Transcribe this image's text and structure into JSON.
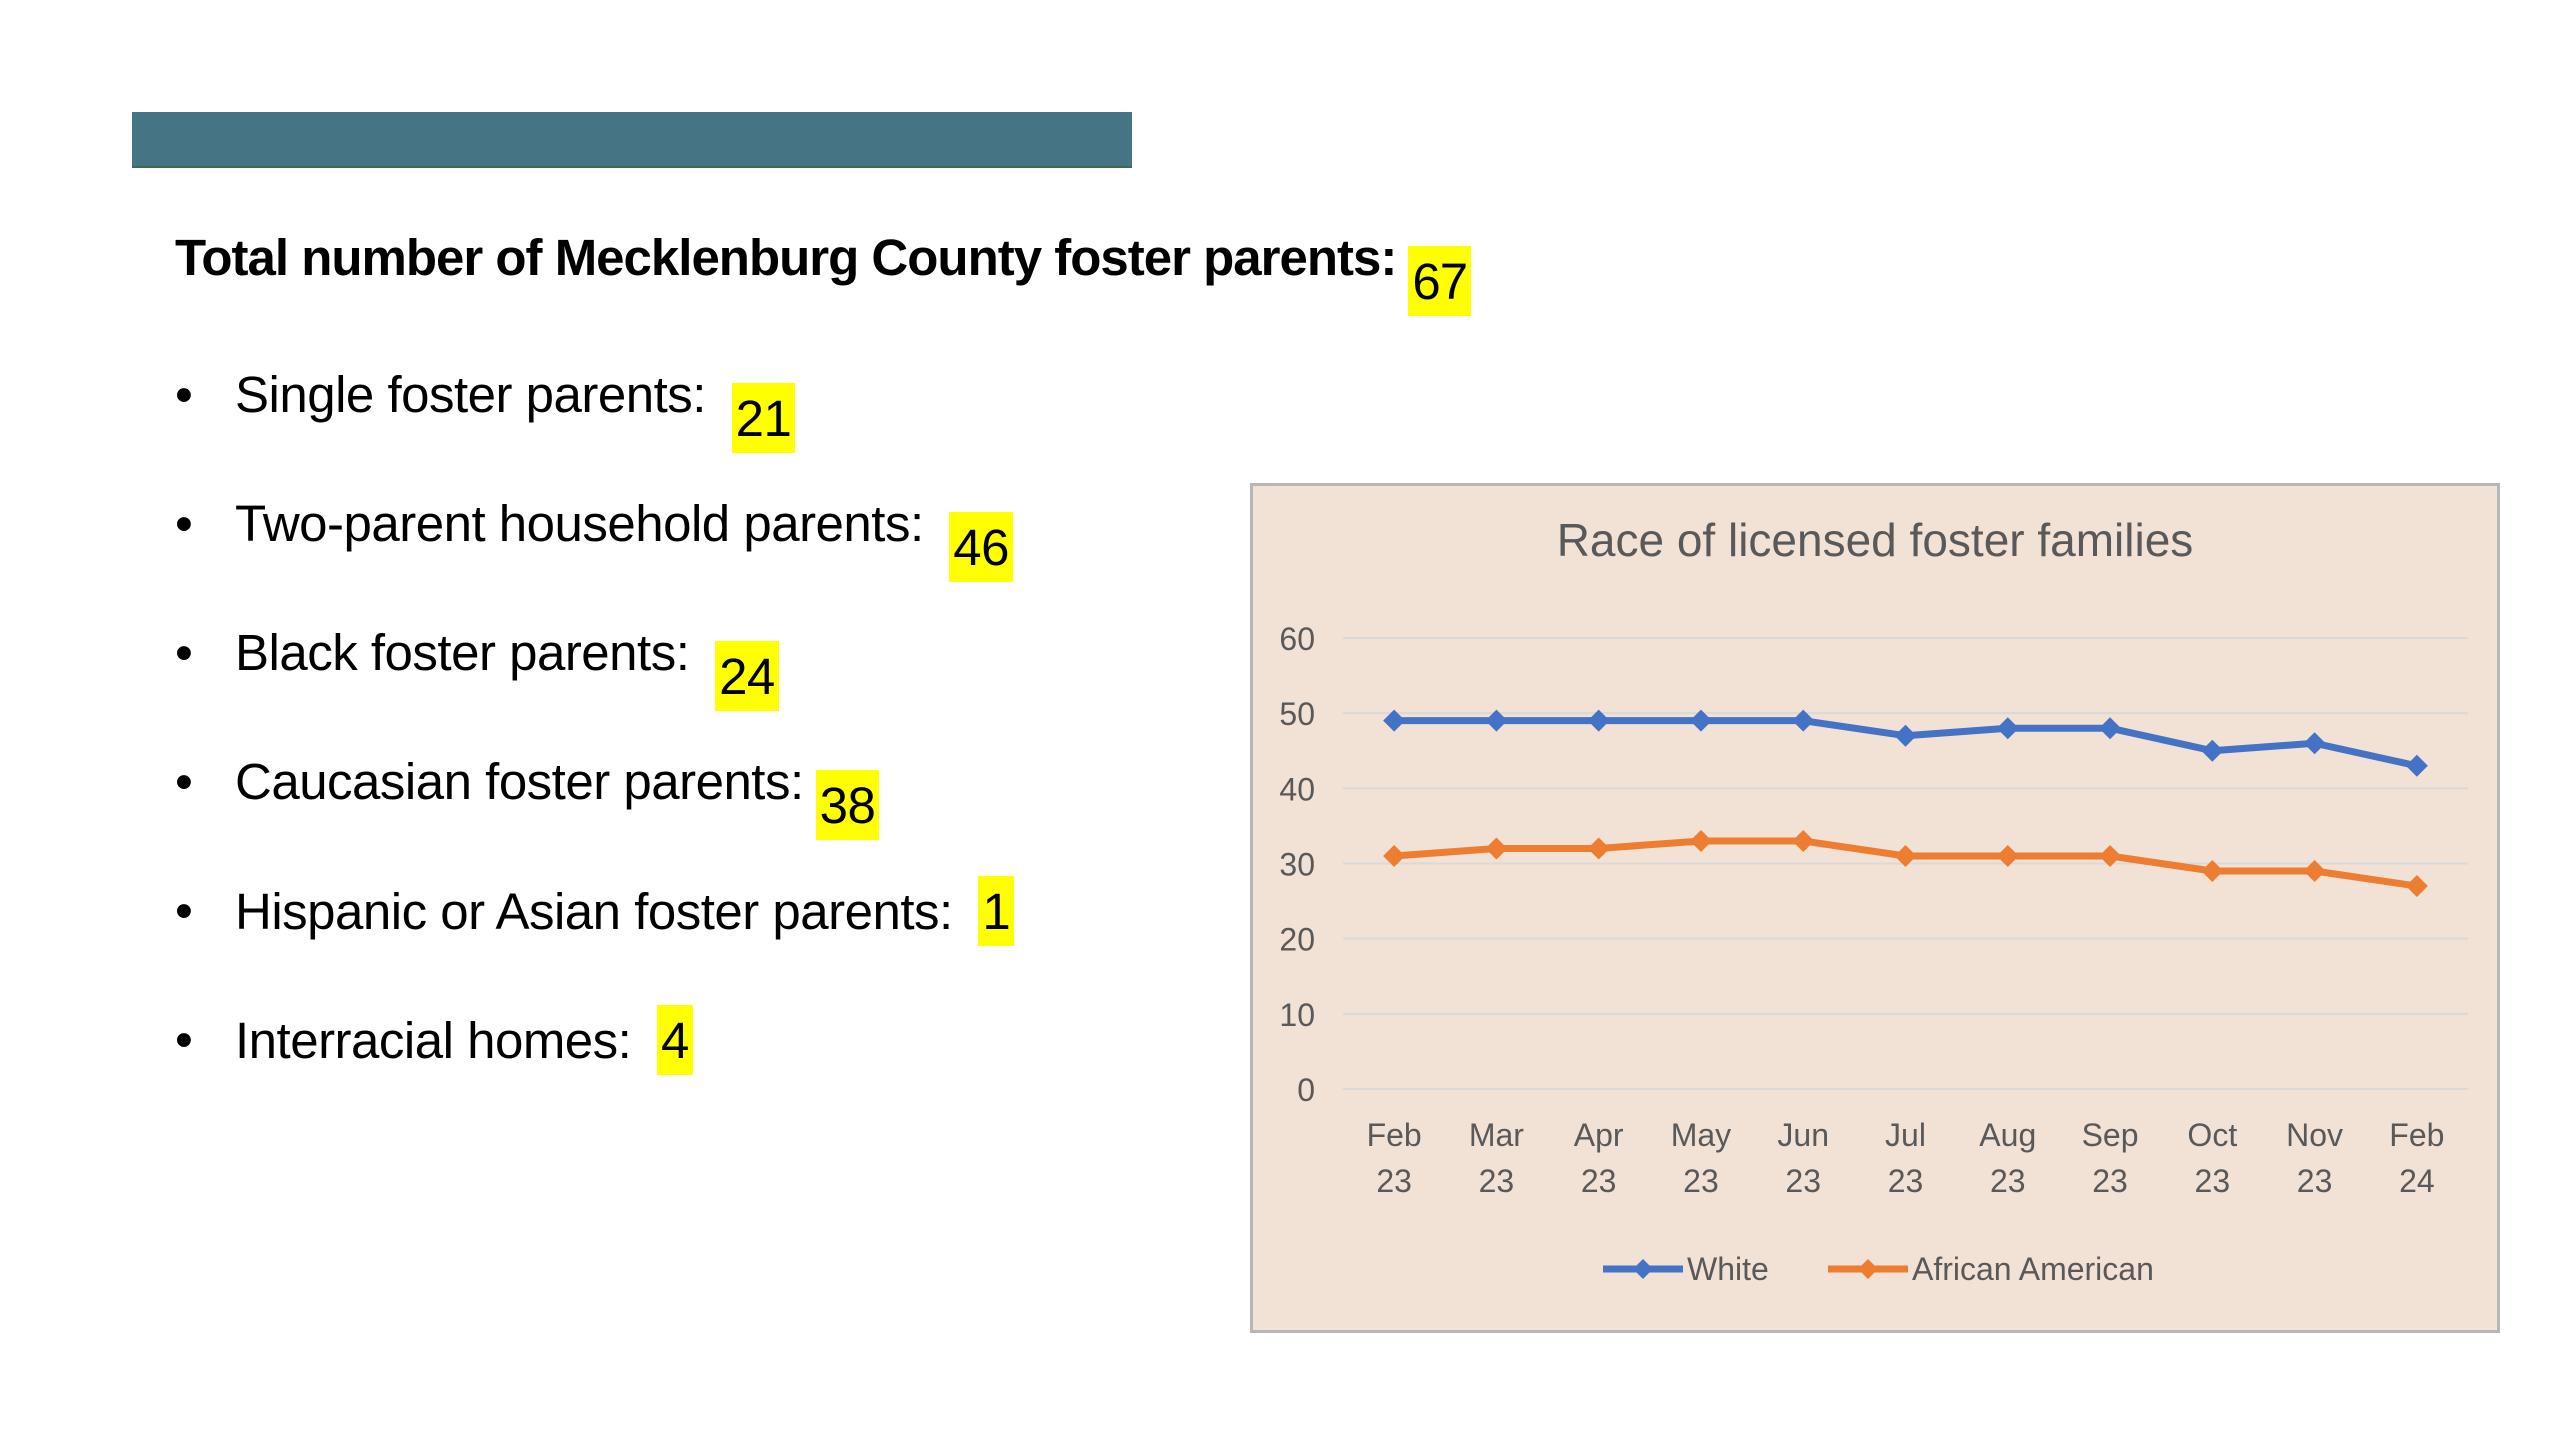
{
  "headline": {
    "label": "Total number of Mecklenburg County foster parents:",
    "value": "67"
  },
  "bullets": [
    {
      "label": "Single foster parents:",
      "value": "21"
    },
    {
      "label": "Two-parent household parents:",
      "value": "46"
    },
    {
      "label": "Black foster parents:",
      "value": "24"
    },
    {
      "label": "Caucasian foster parents:",
      "value": "38"
    },
    {
      "label": "Hispanic or Asian foster parents:",
      "value": "1"
    },
    {
      "label": "Interracial homes:",
      "value": "4"
    }
  ],
  "bullet_glyph": "•",
  "colors": {
    "accent_bar": "#457584",
    "highlight": "#ffff00",
    "chart_background": "#f2e1d5",
    "white_series": "#4472c4",
    "african_american_series": "#ed7d31"
  },
  "chart_data": {
    "type": "line",
    "title": "Race of licensed foster families",
    "categories": [
      [
        "Feb",
        "23"
      ],
      [
        "Mar",
        "23"
      ],
      [
        "Apr",
        "23"
      ],
      [
        "May",
        "23"
      ],
      [
        "Jun",
        "23"
      ],
      [
        "Jul",
        "23"
      ],
      [
        "Aug",
        "23"
      ],
      [
        "Sep",
        "23"
      ],
      [
        "Oct",
        "23"
      ],
      [
        "Nov",
        "23"
      ],
      [
        "Feb",
        "24"
      ]
    ],
    "series": [
      {
        "name": "White",
        "color": "#4472c4",
        "values": [
          49,
          49,
          49,
          49,
          49,
          47,
          48,
          48,
          45,
          46,
          43
        ]
      },
      {
        "name": "African American",
        "color": "#ed7d31",
        "values": [
          31,
          32,
          32,
          33,
          33,
          31,
          31,
          31,
          29,
          29,
          27
        ]
      }
    ],
    "ylim": [
      0,
      60
    ],
    "yticks": [
      0,
      10,
      20,
      30,
      40,
      50,
      60
    ],
    "grid": true,
    "legend": "bottom",
    "marker": "diamond"
  }
}
